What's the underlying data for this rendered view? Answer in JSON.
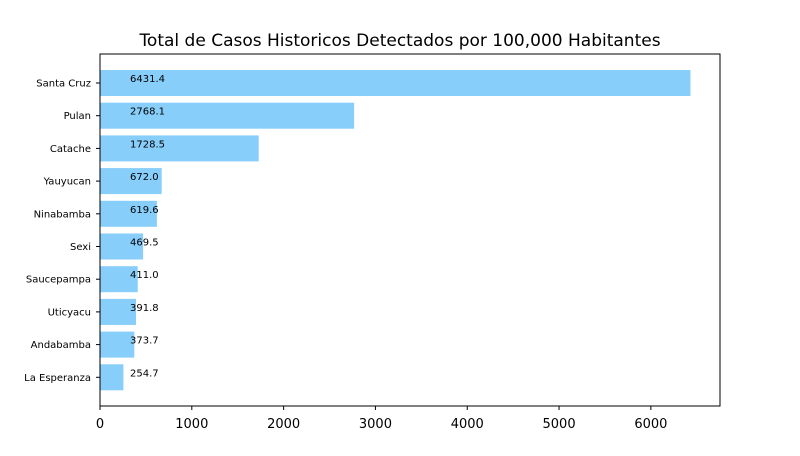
{
  "chart_data": {
    "type": "bar",
    "orientation": "horizontal",
    "title": "Total de Casos Historicos Detectados por 100,000 Habitantes",
    "xlabel": "",
    "ylabel": "",
    "categories": [
      "Santa Cruz",
      "Pulan",
      "Catache",
      "Yauyucan",
      "Ninabamba",
      "Sexi",
      "Saucepampa",
      "Uticyacu",
      "Andabamba",
      "La Esperanza"
    ],
    "values": [
      6431.4,
      2768.1,
      1728.5,
      672.0,
      619.6,
      469.5,
      411.0,
      391.8,
      373.7,
      254.7
    ],
    "value_labels": [
      "6431.4",
      "2768.1",
      "1728.5",
      "672.0",
      "619.6",
      "469.5",
      "411.0",
      "391.8",
      "373.7",
      "254.7"
    ],
    "xticks": [
      0,
      1000,
      2000,
      3000,
      4000,
      5000,
      6000
    ],
    "xlim": [
      0,
      6753
    ],
    "grid": false,
    "bar_color": "#87cefa"
  }
}
